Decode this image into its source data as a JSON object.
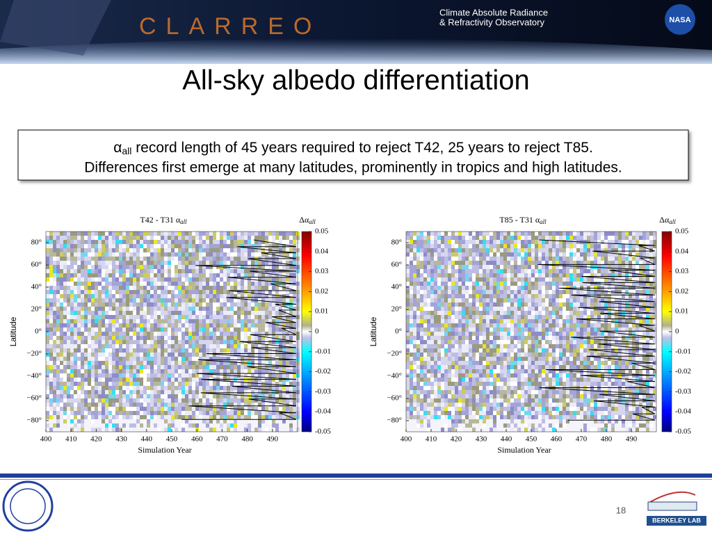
{
  "header": {
    "mission": "CLARREO",
    "line1": "Climate Absolute Radiance",
    "line2": "& Refractivity Observatory",
    "agency": "NASA"
  },
  "title": "All-sky albedo differentiation",
  "box": {
    "symbol": "α",
    "subscript": "all",
    "line1": " record length of 45 years required to reject T42, 25 years to reject T85.",
    "line2": "Differences first emerge at many latitudes, prominently in tropics and high latitudes."
  },
  "chart_data": [
    {
      "type": "heatmap",
      "title": "T42 - T31 α",
      "title_subscript": "all",
      "colorbar_label": "Δα",
      "colorbar_subscript": "all",
      "x_label": "Simulation Year",
      "y_label": "Latitude",
      "xlim": [
        400,
        500
      ],
      "xticks": [
        400,
        410,
        420,
        430,
        440,
        450,
        460,
        470,
        480,
        490
      ],
      "ylim": [
        -90,
        90
      ],
      "yticks": [
        {
          "value": 80,
          "label": "80°"
        },
        {
          "value": 60,
          "label": "60°"
        },
        {
          "value": 40,
          "label": "40°"
        },
        {
          "value": 20,
          "label": "20°"
        },
        {
          "value": 0,
          "label": "0°"
        },
        {
          "value": -20,
          "label": "−20°"
        },
        {
          "value": -40,
          "label": "−40°"
        },
        {
          "value": -60,
          "label": "−60°"
        },
        {
          "value": -80,
          "label": "−80°"
        }
      ],
      "clim": [
        -0.05,
        0.05
      ],
      "cticks": [
        0.05,
        0.04,
        0.03,
        0.02,
        0.01,
        0,
        -0.01,
        -0.02,
        -0.03,
        -0.04,
        -0.05
      ]
    },
    {
      "type": "heatmap",
      "title": "T85 - T31 α",
      "title_subscript": "all",
      "colorbar_label": "Δα",
      "colorbar_subscript": "all",
      "x_label": "Simulation Year",
      "y_label": "Latitude",
      "xlim": [
        400,
        500
      ],
      "xticks": [
        400,
        410,
        420,
        430,
        440,
        450,
        460,
        470,
        480,
        490
      ],
      "ylim": [
        -90,
        90
      ],
      "yticks": [
        {
          "value": 80,
          "label": "80°"
        },
        {
          "value": 60,
          "label": "60°"
        },
        {
          "value": 40,
          "label": "40°"
        },
        {
          "value": 20,
          "label": "20°"
        },
        {
          "value": 0,
          "label": "0°"
        },
        {
          "value": -20,
          "label": "−20°"
        },
        {
          "value": -40,
          "label": "−40°"
        },
        {
          "value": -60,
          "label": "−60°"
        },
        {
          "value": -80,
          "label": "−80°"
        }
      ],
      "clim": [
        -0.05,
        0.05
      ],
      "cticks": [
        0.05,
        0.04,
        0.03,
        0.02,
        0.01,
        0,
        -0.01,
        -0.02,
        -0.03,
        -0.04,
        -0.05
      ]
    }
  ],
  "footer": {
    "page": "18",
    "lab": "BERKELEY LAB"
  }
}
